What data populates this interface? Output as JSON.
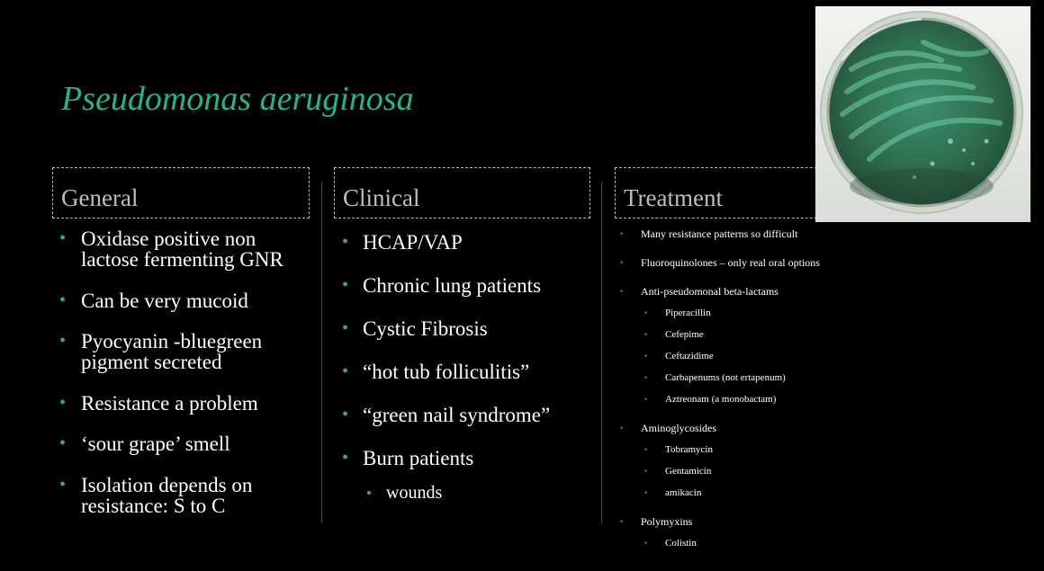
{
  "slide": {
    "title": "Pseudomonas aeruginosa"
  },
  "general": {
    "header": "General",
    "items": [
      "Oxidase positive non lactose fermenting GNR",
      "Can be very mucoid",
      "Pyocyanin -bluegreen pigment secreted",
      "Resistance a problem",
      "‘sour grape’ smell",
      "Isolation depends on resistance: S to C"
    ]
  },
  "clinical": {
    "header": "Clinical",
    "items": [
      "HCAP/VAP",
      "Chronic lung patients",
      "Cystic Fibrosis",
      "“hot tub folliculitis”",
      "“green nail syndrome”",
      "Burn patients"
    ],
    "sub_items": [
      "wounds"
    ]
  },
  "treatment": {
    "header": "Treatment",
    "items": [
      "Many resistance patterns so difficult",
      "Fluoroquinolones – only real oral options",
      "Anti-pseudomonal beta-lactams",
      "Piperacillin",
      "Cefepime",
      "Ceftazidime",
      "Carbapenums (not ertapenum)",
      "Aztreonam (a monobactam)",
      "Aminoglycosides",
      "Tobramycin",
      "Gentamicin",
      "amikacin",
      "Polymyxins",
      "Colistin"
    ]
  },
  "colors": {
    "accent": "#1fb58e",
    "background": "#000000",
    "header_text": "#b8bfc2"
  }
}
